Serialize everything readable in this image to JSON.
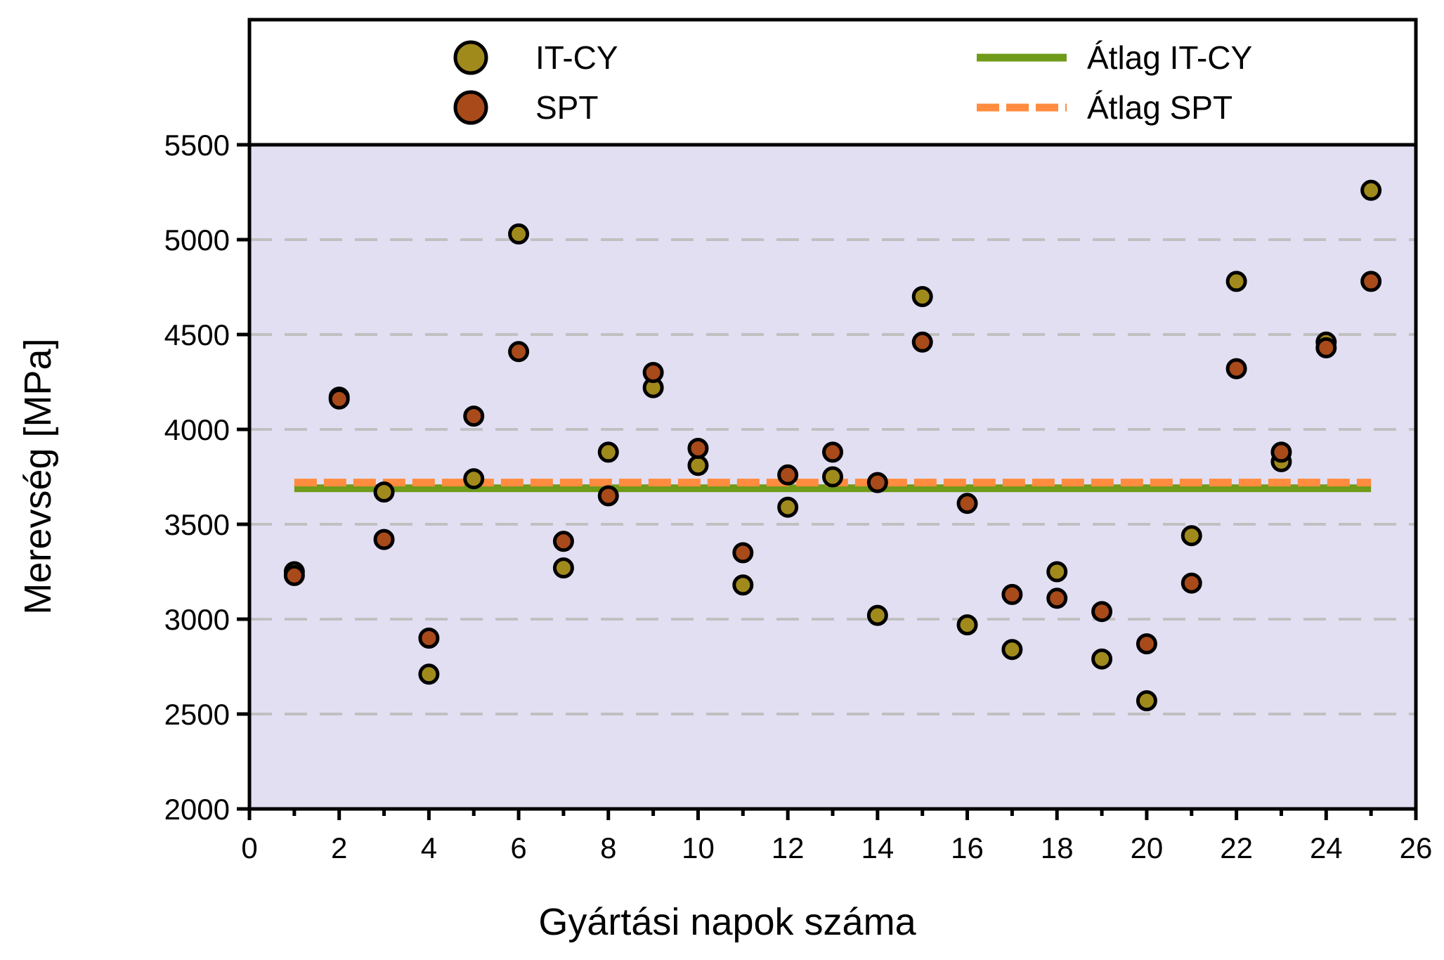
{
  "chart_data": {
    "type": "scatter",
    "xlabel": "Gyártási napok száma",
    "ylabel": "Merevség [MPa]",
    "xlim": [
      0,
      26
    ],
    "ylim": [
      2000,
      5500
    ],
    "x_ticks": [
      "0",
      "2",
      "4",
      "6",
      "8",
      "10",
      "12",
      "14",
      "16",
      "18",
      "20",
      "22",
      "24",
      "26"
    ],
    "y_ticks": [
      "2000",
      "2500",
      "3000",
      "3500",
      "4000",
      "4500",
      "5000",
      "5500"
    ],
    "grid": "horizontal dashed",
    "legend_position": "top",
    "series": [
      {
        "name": "IT-CY",
        "color": "#a18a1c",
        "x": [
          1,
          2,
          3,
          4,
          5,
          6,
          7,
          8,
          9,
          10,
          11,
          12,
          13,
          14,
          15,
          16,
          17,
          18,
          19,
          20,
          21,
          22,
          23,
          24,
          25
        ],
        "y": [
          3250,
          4170,
          3670,
          2710,
          3740,
          5030,
          3270,
          3880,
          4220,
          3810,
          3180,
          3590,
          3750,
          3020,
          4700,
          2970,
          2840,
          3250,
          2790,
          2570,
          3440,
          4780,
          3830,
          4460,
          5260
        ]
      },
      {
        "name": "SPT",
        "color": "#a84a1a",
        "x": [
          1,
          2,
          3,
          4,
          5,
          6,
          7,
          8,
          9,
          10,
          11,
          12,
          13,
          14,
          15,
          16,
          17,
          18,
          19,
          20,
          21,
          22,
          23,
          24,
          25
        ],
        "y": [
          3230,
          4160,
          3420,
          2900,
          4070,
          4410,
          3410,
          3650,
          4300,
          3900,
          3350,
          3760,
          3880,
          3720,
          4460,
          3610,
          3130,
          3110,
          3040,
          2870,
          3190,
          4320,
          3880,
          4430,
          4780
        ]
      }
    ],
    "averages": [
      {
        "name": "Átlag IT-CY",
        "value": 3690,
        "color": "#6f9a1a",
        "style": "solid"
      },
      {
        "name": "Átlag SPT",
        "value": 3720,
        "color": "#ff8c3f",
        "style": "dashed"
      }
    ],
    "colors": {
      "plot_background": "#e2dff3",
      "grid": "#c0c0c0",
      "marker_edge": "#000000"
    }
  }
}
